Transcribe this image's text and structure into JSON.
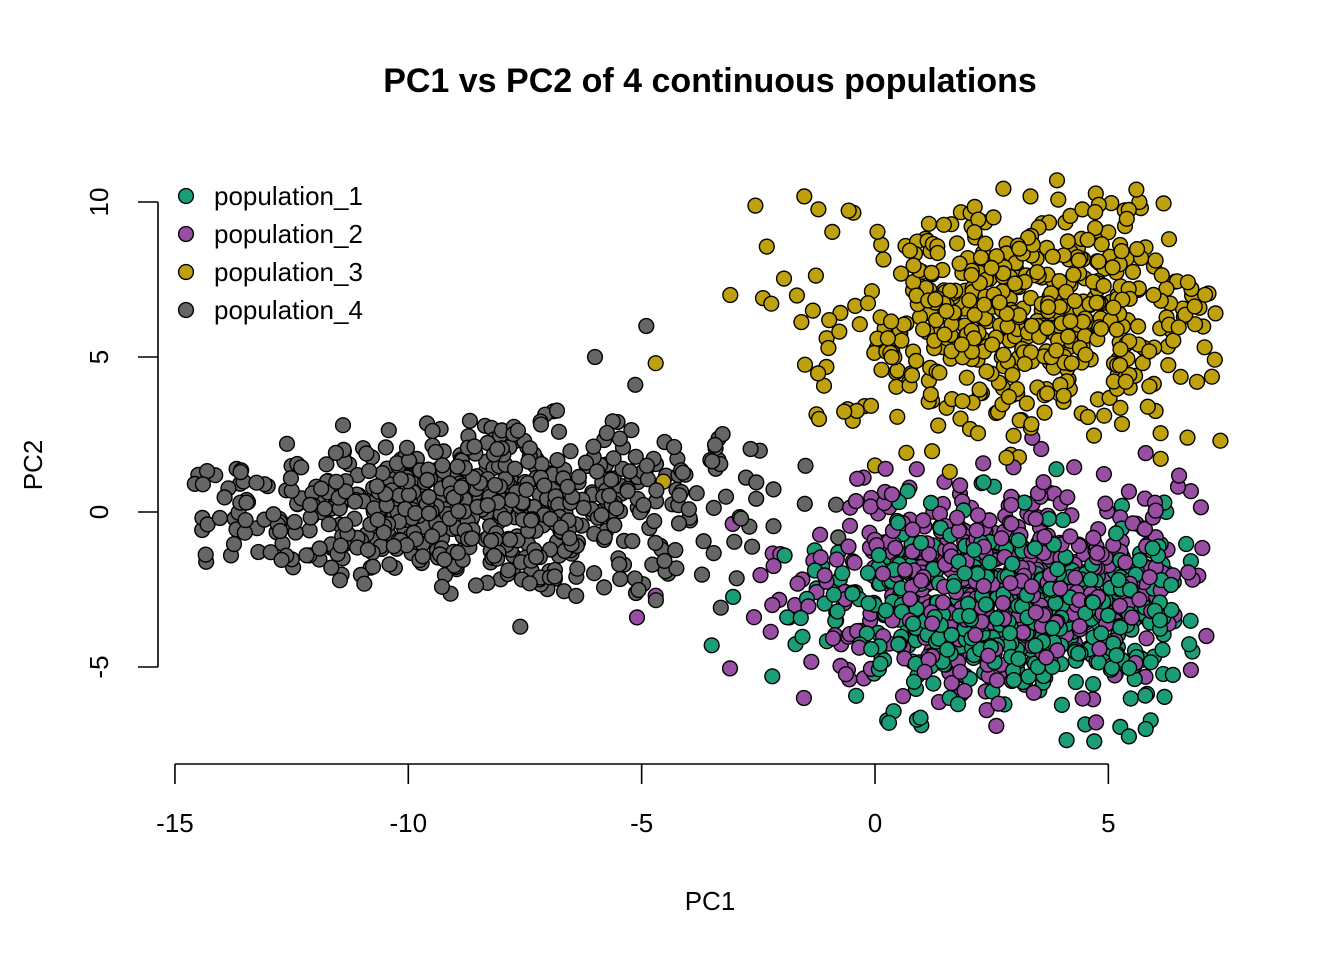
{
  "chart_data": {
    "type": "scatter",
    "title": "PC1 vs PC2 of 4 continuous populations",
    "xlabel": "PC1",
    "ylabel": "PC2",
    "xlim": [
      -15,
      7.5
    ],
    "ylim": [
      -7.5,
      10.8
    ],
    "x_ticks": [
      -15,
      -10,
      -5,
      0,
      5
    ],
    "y_ticks": [
      -5,
      0,
      5,
      10
    ],
    "grid": false,
    "legend_position": "top-left",
    "series": [
      {
        "name": "population_1",
        "color": "#1b9e77",
        "cloud": {
          "center": [
            3.2,
            -3.0
          ],
          "spread": [
            1.9,
            1.5
          ],
          "n": 560,
          "x_range": [
            -3.6,
            6.9
          ],
          "y_range": [
            -7.4,
            1.8
          ]
        },
        "points": [
          [
            0.3,
            -6.8
          ],
          [
            0.9,
            -6.7
          ],
          [
            4.7,
            -7.4
          ],
          [
            5.8,
            -7.0
          ],
          [
            -2.2,
            -5.3
          ],
          [
            -3.5,
            -4.3
          ],
          [
            6.8,
            -4.5
          ],
          [
            6.0,
            -3.3
          ],
          [
            1.6,
            -6.0
          ]
        ]
      },
      {
        "name": "population_2",
        "color": "#984ea3",
        "cloud": {
          "center": [
            2.6,
            -2.4
          ],
          "spread": [
            2.1,
            1.7
          ],
          "n": 560,
          "x_range": [
            -5.0,
            7.2
          ],
          "y_range": [
            -7.0,
            2.4
          ]
        },
        "points": [
          [
            7.1,
            -4.0
          ],
          [
            -5.1,
            -3.4
          ],
          [
            -4.7,
            -2.7
          ],
          [
            2.6,
            -6.9
          ],
          [
            6.0,
            0.3
          ],
          [
            6.3,
            -2.2
          ],
          [
            5.8,
            1.9
          ]
        ]
      },
      {
        "name": "population_3",
        "color": "#bfa10d",
        "cloud": {
          "center": [
            3.3,
            6.3
          ],
          "spread": [
            2.0,
            1.9
          ],
          "n": 560,
          "x_range": [
            -4.8,
            7.3
          ],
          "y_range": [
            -0.3,
            10.6
          ]
        },
        "points": [
          [
            7.4,
            2.3
          ],
          [
            3.9,
            10.7
          ],
          [
            5.6,
            10.4
          ],
          [
            -3.1,
            7.0
          ],
          [
            -4.7,
            4.8
          ],
          [
            -2.4,
            6.9
          ],
          [
            6.9,
            4.2
          ],
          [
            6.3,
            8.8
          ],
          [
            -1.2,
            3.0
          ],
          [
            0.0,
            1.5
          ]
        ]
      },
      {
        "name": "population_4",
        "color": "#666666",
        "cloud": {
          "center": [
            -8.8,
            0.2
          ],
          "spread": [
            2.9,
            1.3
          ],
          "n": 700,
          "x_range": [
            -14.6,
            -0.6
          ],
          "y_range": [
            -3.8,
            6.1
          ]
        },
        "points": [
          [
            -14.5,
            1.2
          ],
          [
            -14.3,
            -0.4
          ],
          [
            -13.8,
            -1.4
          ],
          [
            -13.6,
            0.3
          ],
          [
            -7.6,
            -3.7
          ],
          [
            -4.9,
            6.0
          ],
          [
            -6.0,
            5.0
          ],
          [
            -12.6,
            2.2
          ],
          [
            -11.4,
            2.8
          ]
        ]
      }
    ]
  }
}
